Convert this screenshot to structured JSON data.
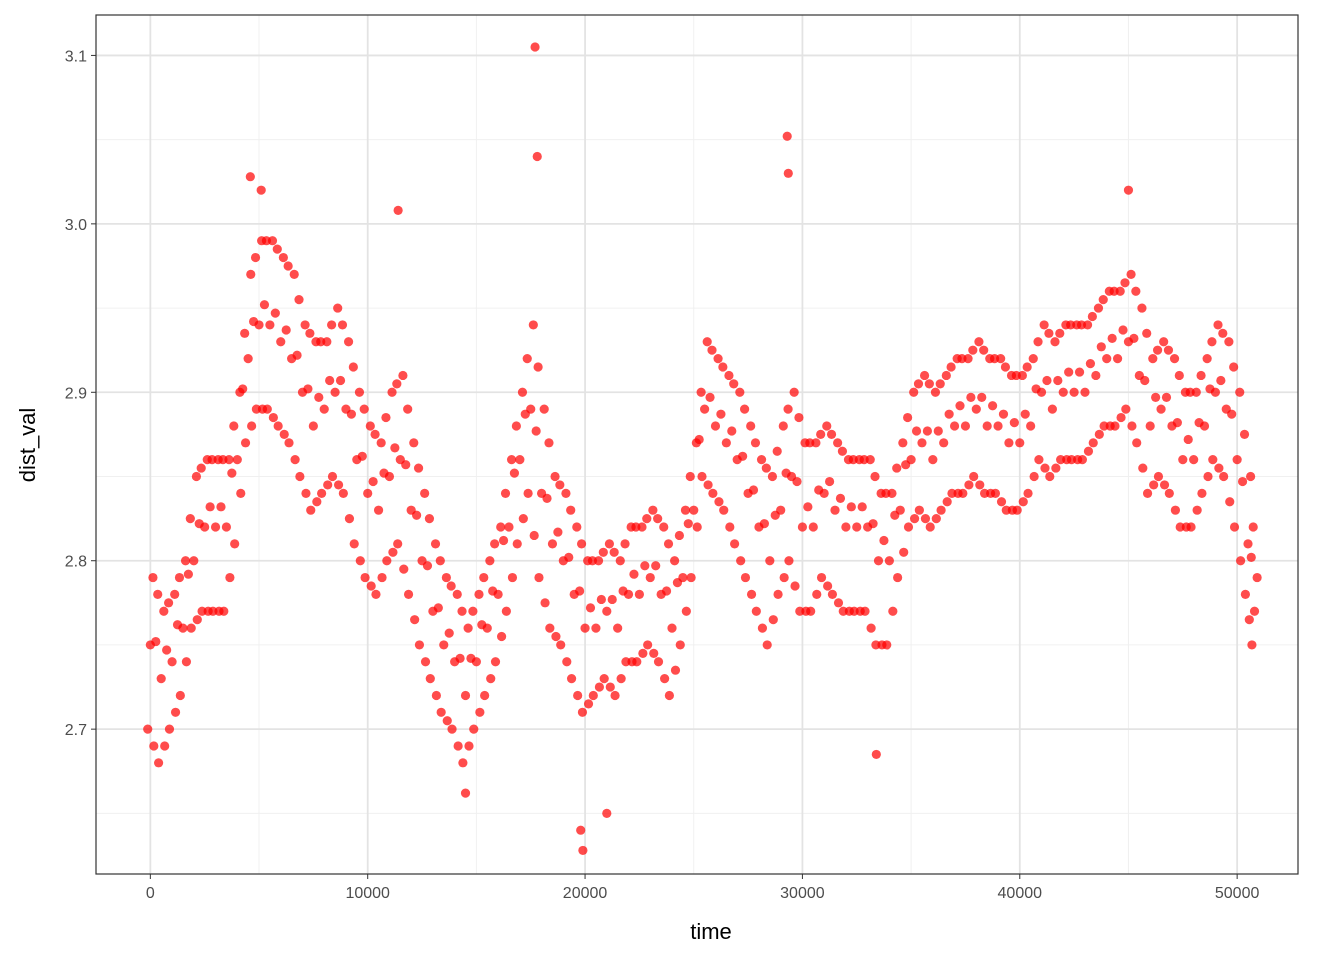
{
  "chart_data": {
    "type": "scatter",
    "xlabel": "time",
    "ylabel": "dist_val",
    "xlim": [
      -2500,
      52800
    ],
    "ylim": [
      2.614,
      3.124
    ],
    "x_ticks": [
      0,
      10000,
      20000,
      30000,
      40000,
      50000
    ],
    "x_tick_labels": [
      "0",
      "10000",
      "20000",
      "30000",
      "40000",
      "50000"
    ],
    "y_ticks": [
      2.7,
      2.8,
      2.9,
      3.0,
      3.1
    ],
    "y_tick_labels": [
      "2.7",
      "2.8",
      "2.9",
      "3.0",
      "3.1"
    ],
    "grid": true,
    "point_color": "#FF0000",
    "point_alpha": 0.7,
    "x": [
      0,
      500,
      1000,
      1500,
      2000,
      2500,
      3000,
      3500,
      4000,
      4500,
      5000,
      5500,
      6000,
      6500,
      7000,
      7500,
      8000,
      8500,
      9000,
      9500,
      10000,
      10500,
      11000,
      11500,
      12000,
      12500,
      13000,
      13500,
      14000,
      14500,
      15000,
      15500,
      16000,
      16500,
      17000,
      17500,
      18000,
      18500,
      19000,
      19500,
      20000,
      20500,
      21000,
      21500,
      22000,
      22500,
      23000,
      23500,
      24000,
      24500,
      25000,
      25500,
      26000,
      26500,
      27000,
      27500,
      28000,
      28500,
      29000,
      29500,
      30000,
      30500,
      31000,
      31500,
      32000,
      32500,
      33000,
      33500,
      34000,
      34500,
      35000,
      35500,
      36000,
      36500,
      37000,
      37500,
      38000,
      38500,
      39000,
      39500,
      40000,
      40500,
      41000,
      41500,
      42000,
      42500,
      43000,
      43500,
      44000,
      44500,
      45000,
      45500,
      46000,
      46500,
      47000,
      47500,
      48000,
      48500,
      49000,
      49500,
      50000,
      50500,
      50800
    ],
    "y": [
      [
        2.7,
        2.75,
        2.79
      ],
      [
        2.68,
        2.73,
        2.77
      ],
      [
        2.7,
        2.74,
        2.78
      ],
      [
        2.72,
        2.76,
        2.8
      ],
      [
        2.76,
        2.8,
        2.85
      ],
      [
        2.77,
        2.82,
        2.86
      ],
      [
        2.77,
        2.82,
        2.86
      ],
      [
        2.77,
        2.82,
        2.86
      ],
      [
        2.81,
        2.86,
        2.9
      ],
      [
        2.87,
        2.92,
        2.97
      ],
      [
        2.89,
        2.94,
        2.99
      ],
      [
        2.89,
        2.94,
        2.99
      ],
      [
        2.88,
        2.93,
        2.98
      ],
      [
        2.87,
        2.92,
        2.97
      ],
      [
        2.85,
        2.9,
        2.94
      ],
      [
        2.83,
        2.88,
        2.93
      ],
      [
        2.84,
        2.89,
        2.93
      ],
      [
        2.85,
        2.9,
        2.95
      ],
      [
        2.84,
        2.89,
        2.93
      ],
      [
        2.81,
        2.86,
        2.9
      ],
      [
        2.79,
        2.84,
        2.88
      ],
      [
        2.78,
        2.83,
        2.87
      ],
      [
        2.8,
        2.85,
        2.9
      ],
      [
        2.81,
        2.86,
        2.91
      ],
      [
        2.78,
        2.83,
        2.87
      ],
      [
        2.75,
        2.8,
        2.84
      ],
      [
        2.73,
        2.77,
        2.81
      ],
      [
        2.71,
        2.75,
        2.79
      ],
      [
        2.7,
        2.74,
        2.78
      ],
      [
        2.68,
        2.72,
        2.76
      ],
      [
        2.7,
        2.74,
        2.78
      ],
      [
        2.72,
        2.76,
        2.8
      ],
      [
        2.74,
        2.78,
        2.82
      ],
      [
        2.77,
        2.82,
        2.86
      ],
      [
        2.81,
        2.86,
        2.9
      ],
      [
        2.84,
        2.89,
        2.94
      ],
      [
        2.79,
        2.84,
        2.89
      ],
      [
        2.76,
        2.81,
        2.85
      ],
      [
        2.75,
        2.8,
        2.84
      ],
      [
        2.73,
        2.78,
        2.82
      ],
      [
        2.71,
        2.76,
        2.8
      ],
      [
        2.72,
        2.76,
        2.8
      ],
      [
        2.73,
        2.77,
        2.81
      ],
      [
        2.72,
        2.76,
        2.8
      ],
      [
        2.74,
        2.78,
        2.82
      ],
      [
        2.74,
        2.78,
        2.82
      ],
      [
        2.75,
        2.79,
        2.83
      ],
      [
        2.74,
        2.78,
        2.82
      ],
      [
        2.72,
        2.76,
        2.8
      ],
      [
        2.75,
        2.79,
        2.83
      ],
      [
        2.79,
        2.83,
        2.87
      ],
      [
        2.85,
        2.89,
        2.93
      ],
      [
        2.84,
        2.88,
        2.92
      ],
      [
        2.83,
        2.87,
        2.91
      ],
      [
        2.81,
        2.86,
        2.9
      ],
      [
        2.79,
        2.84,
        2.88
      ],
      [
        2.77,
        2.82,
        2.86
      ],
      [
        2.75,
        2.8,
        2.85
      ],
      [
        2.78,
        2.83,
        2.88
      ],
      [
        2.8,
        2.85,
        2.9
      ],
      [
        2.77,
        2.82,
        2.87
      ],
      [
        2.77,
        2.82,
        2.87
      ],
      [
        2.79,
        2.84,
        2.88
      ],
      [
        2.78,
        2.83,
        2.87
      ],
      [
        2.77,
        2.82,
        2.86
      ],
      [
        2.77,
        2.82,
        2.86
      ],
      [
        2.77,
        2.82,
        2.86
      ],
      [
        2.75,
        2.8,
        2.84
      ],
      [
        2.75,
        2.8,
        2.84
      ],
      [
        2.79,
        2.83,
        2.87
      ],
      [
        2.82,
        2.86,
        2.9
      ],
      [
        2.83,
        2.87,
        2.91
      ],
      [
        2.82,
        2.86,
        2.9
      ],
      [
        2.83,
        2.87,
        2.91
      ],
      [
        2.84,
        2.88,
        2.92
      ],
      [
        2.84,
        2.88,
        2.92
      ],
      [
        2.85,
        2.89,
        2.93
      ],
      [
        2.84,
        2.88,
        2.92
      ],
      [
        2.84,
        2.88,
        2.92
      ],
      [
        2.83,
        2.87,
        2.91
      ],
      [
        2.83,
        2.87,
        2.91
      ],
      [
        2.84,
        2.88,
        2.92
      ],
      [
        2.86,
        2.9,
        2.94
      ],
      [
        2.85,
        2.89,
        2.93
      ],
      [
        2.86,
        2.9,
        2.94
      ],
      [
        2.86,
        2.9,
        2.94
      ],
      [
        2.86,
        2.9,
        2.94
      ],
      [
        2.87,
        2.91,
        2.95
      ],
      [
        2.88,
        2.92,
        2.96
      ],
      [
        2.88,
        2.92,
        2.96
      ],
      [
        2.89,
        2.93,
        2.97
      ],
      [
        2.87,
        2.91,
        2.95
      ],
      [
        2.84,
        2.88,
        2.92
      ],
      [
        2.85,
        2.89,
        2.93
      ],
      [
        2.84,
        2.88,
        2.92
      ],
      [
        2.82,
        2.86,
        2.9
      ],
      [
        2.82,
        2.86,
        2.9
      ],
      [
        2.84,
        2.88,
        2.92
      ],
      [
        2.86,
        2.9,
        2.94
      ],
      [
        2.85,
        2.89,
        2.93
      ],
      [
        2.82,
        2.86,
        2.9
      ],
      [
        2.78,
        2.81,
        2.85
      ],
      [
        2.75,
        2.77,
        2.79
      ]
    ],
    "outliers": [
      [
        17700,
        3.105
      ],
      [
        17800,
        3.04
      ],
      [
        29300,
        3.052
      ],
      [
        29350,
        3.03
      ],
      [
        45000,
        3.02
      ],
      [
        4600,
        3.028
      ],
      [
        5100,
        3.02
      ],
      [
        11400,
        3.008
      ],
      [
        19900,
        2.628
      ],
      [
        19800,
        2.64
      ],
      [
        33400,
        2.685
      ],
      [
        21000,
        2.65
      ],
      [
        14500,
        2.662
      ]
    ]
  }
}
